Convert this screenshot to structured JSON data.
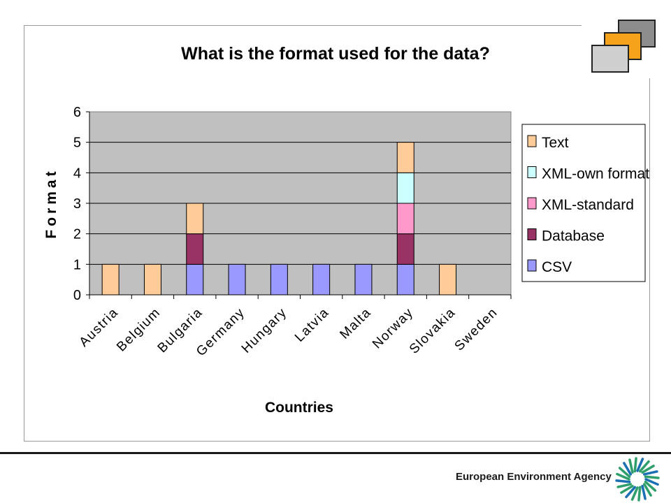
{
  "footer": {
    "agency_name": "European Environment Agency",
    "logo_icon": "eea-logo-icon",
    "decoration_icon": "stacked-squares-icon"
  },
  "colors": {
    "plot_background": "#C0C0C0",
    "Text": "#FFCC99",
    "XML-own format": "#CCFFFF",
    "XML-standard": "#FF99CC",
    "Database": "#993366",
    "CSV": "#9999FF",
    "deco_dark": "#8D8D8D",
    "deco_orange": "#F7A21B",
    "deco_light": "#CFCFCF",
    "logo_green": "#2E9E6B",
    "logo_blue": "#1B6FB3"
  },
  "chart_data": {
    "type": "bar",
    "stacked": true,
    "title": "What is the format used for the data?",
    "xlabel": "Countries",
    "ylabel": "Format",
    "ylim": [
      0,
      6
    ],
    "yticks": [
      "0",
      "1",
      "2",
      "3",
      "4",
      "5",
      "6"
    ],
    "grid": true,
    "legend_position": "right",
    "categories": [
      "Austria",
      "Belgium",
      "Bulgaria",
      "Germany",
      "Hungary",
      "Latvia",
      "Malta",
      "Norway",
      "Slovakia",
      "Sweden"
    ],
    "series": [
      {
        "name": "CSV",
        "values": [
          0,
          0,
          1,
          1,
          1,
          1,
          1,
          1,
          0,
          0
        ]
      },
      {
        "name": "Database",
        "values": [
          0,
          0,
          1,
          0,
          0,
          0,
          0,
          1,
          0,
          0
        ]
      },
      {
        "name": "XML-standard",
        "values": [
          0,
          0,
          0,
          0,
          0,
          0,
          0,
          1,
          0,
          0
        ]
      },
      {
        "name": "XML-own format",
        "values": [
          0,
          0,
          0,
          0,
          0,
          0,
          0,
          1,
          0,
          0
        ]
      },
      {
        "name": "Text",
        "values": [
          1,
          1,
          1,
          0,
          0,
          0,
          0,
          1,
          1,
          0
        ]
      }
    ],
    "legend_order": [
      "Text",
      "XML-own format",
      "XML-standard",
      "Database",
      "CSV"
    ]
  }
}
